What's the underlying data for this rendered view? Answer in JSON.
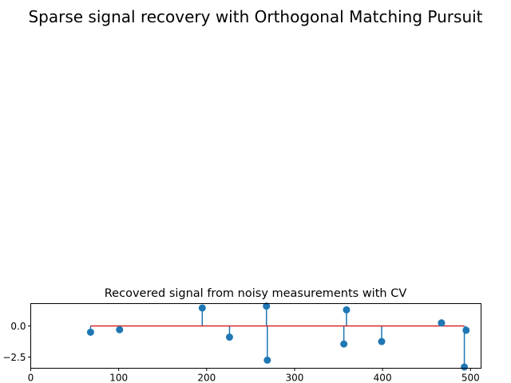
{
  "figure": {
    "suptitle": "Sparse signal recovery with Orthogonal Matching Pursuit"
  },
  "chart_data": {
    "type": "stem",
    "title": "Recovered signal from noisy measurements with CV",
    "xlabel": "",
    "ylabel": "",
    "xlim": [
      0,
      512
    ],
    "ylim": [
      -3.4,
      1.8
    ],
    "xticks": [
      0,
      100,
      200,
      300,
      400,
      500
    ],
    "yticks": [
      0.0,
      -2.5
    ],
    "ytick_labels": [
      "0.0",
      "−2.5"
    ],
    "baseline": 0,
    "baseline_range": [
      68,
      493
    ],
    "points": [
      {
        "x": 68,
        "y": -0.5
      },
      {
        "x": 101,
        "y": -0.3
      },
      {
        "x": 195,
        "y": 1.45
      },
      {
        "x": 226,
        "y": -0.9
      },
      {
        "x": 268,
        "y": 1.6
      },
      {
        "x": 269,
        "y": -2.75
      },
      {
        "x": 356,
        "y": -1.45
      },
      {
        "x": 359,
        "y": 1.3
      },
      {
        "x": 399,
        "y": -1.25
      },
      {
        "x": 467,
        "y": 0.25
      },
      {
        "x": 493,
        "y": -3.3
      },
      {
        "x": 495,
        "y": -0.35
      }
    ],
    "colors": {
      "stem": "#1f77b4",
      "marker": "#1f77b4",
      "baseline": "#d62728"
    }
  }
}
